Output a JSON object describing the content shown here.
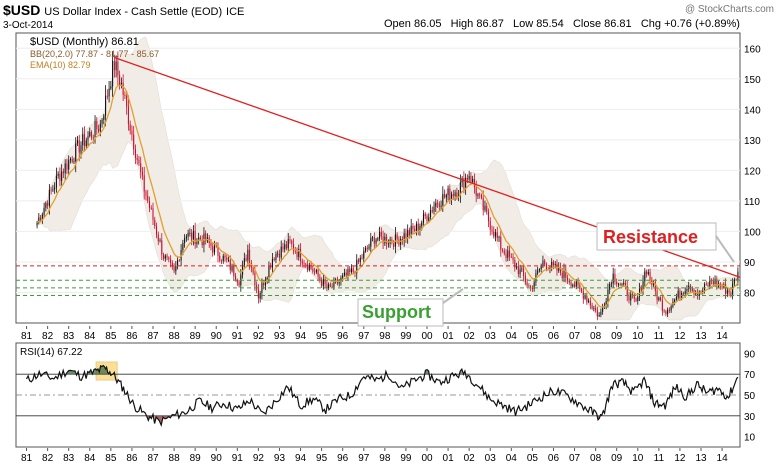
{
  "header": {
    "symbol": "$USD",
    "name": "US Dollar Index - Cash Settle (EOD)",
    "exchange": "ICE",
    "date": "3-Oct-2014",
    "watermark": "@ StockCharts.com",
    "quote": "Open 86.05   High 86.87   Low 85.54   Close 86.81   Chg +0.76 (+0.89%)"
  },
  "colors": {
    "up": "#111111",
    "down": "#c8102e",
    "bb_fill": "#f1ece6",
    "ema": "#e0a030",
    "resistance": "#e02020",
    "support": "#3aa030",
    "rsi_fill_hi": "#3e6b40",
    "rsi_fill_lo": "#8b3a3a",
    "highlight": "#f5c842"
  },
  "chart_data": [
    {
      "type": "candlestick",
      "title": "$USD (Monthly) 86.81",
      "legend": [
        {
          "label": "$USD (Monthly) 86.81"
        },
        {
          "label": "BB(20,2.0) 77.87 - 81.77 - 85.67"
        },
        {
          "label": "EMA(10) 82.79"
        }
      ],
      "y_range": [
        70,
        165
      ],
      "y_ticks": [
        80,
        90,
        100,
        110,
        120,
        130,
        140,
        150,
        160
      ],
      "x_range": [
        1980.5,
        2014.85
      ],
      "x_ticks": [
        "81",
        "82",
        "83",
        "84",
        "85",
        "86",
        "87",
        "88",
        "89",
        "90",
        "91",
        "92",
        "93",
        "94",
        "95",
        "96",
        "97",
        "98",
        "99",
        "00",
        "01",
        "02",
        "03",
        "04",
        "05",
        "06",
        "07",
        "08",
        "09",
        "10",
        "11",
        "12",
        "13",
        "14"
      ],
      "series": [
        {
          "name": "$USD (Monthly)",
          "x": [
            1981.5,
            1982.5,
            1983.5,
            1984.5,
            1985.15,
            1985.5,
            1986.5,
            1987.5,
            1988.0,
            1988.5,
            1989.5,
            1990.5,
            1991.1,
            1991.5,
            1992.0,
            1992.7,
            1993.5,
            1994.5,
            1995.3,
            1995.9,
            1996.5,
            1997.5,
            1998.5,
            1999.5,
            2000.5,
            2001.5,
            2002.0,
            2002.5,
            2003.5,
            2004.5,
            2004.9,
            2005.5,
            2006.5,
            2007.5,
            2008.2,
            2008.8,
            2009.5,
            2009.9,
            2010.4,
            2010.9,
            2011.3,
            2011.8,
            2012.4,
            2012.9,
            2013.5,
            2014.4,
            2014.75
          ],
          "close": [
            103,
            118,
            128,
            135,
            155,
            148,
            116,
            92,
            86,
            99,
            97,
            90,
            84,
            94,
            79,
            92,
            96,
            88,
            81,
            84,
            87,
            98,
            97,
            101,
            110,
            114,
            119,
            110,
            95,
            86,
            81,
            90,
            86,
            79,
            72,
            86,
            80,
            76,
            88,
            79,
            74,
            78,
            83,
            79,
            84,
            80,
            86.81
          ]
        },
        {
          "name": "BB(20,2.0)",
          "upper": 85.67,
          "middle": 81.77,
          "lower": 77.87
        },
        {
          "name": "EMA(10)",
          "value": 82.79
        }
      ],
      "annotations": [
        {
          "text": "Resistance",
          "kind": "trendline",
          "from": {
            "x": 1985.15,
            "y": 157
          },
          "to": {
            "x": 2014.85,
            "y": 85
          }
        },
        {
          "text": "Support",
          "kind": "horizontal",
          "levels": [
            79,
            81.5,
            84
          ]
        },
        {
          "text": "",
          "kind": "horizontal-resistance",
          "level": 88.7
        }
      ]
    },
    {
      "type": "line",
      "title": "RSI(14) 67.22",
      "y_range": [
        0,
        100
      ],
      "y_ticks": [
        10,
        30,
        50,
        70,
        90
      ],
      "reference_levels": [
        30,
        50,
        70
      ],
      "x_ticks": [
        "81",
        "82",
        "83",
        "84",
        "85",
        "86",
        "87",
        "88",
        "89",
        "90",
        "91",
        "92",
        "93",
        "94",
        "95",
        "96",
        "97",
        "98",
        "99",
        "00",
        "01",
        "02",
        "03",
        "04",
        "05",
        "06",
        "07",
        "08",
        "09",
        "10",
        "11",
        "12",
        "13",
        "14"
      ],
      "series": [
        {
          "name": "RSI(14)",
          "x": [
            1981.0,
            1981.6,
            1982.3,
            1983.0,
            1983.6,
            1984.2,
            1984.7,
            1985.1,
            1985.6,
            1986.1,
            1986.7,
            1987.3,
            1988.0,
            1988.6,
            1989.2,
            1989.8,
            1990.4,
            1991.0,
            1991.6,
            1992.2,
            1992.8,
            1993.4,
            1994.0,
            1994.6,
            1995.2,
            1995.8,
            1996.4,
            1997.0,
            1997.6,
            1998.2,
            1998.8,
            1999.4,
            2000.0,
            2000.6,
            2001.2,
            2001.8,
            2002.4,
            2003.0,
            2003.6,
            2004.2,
            2004.8,
            2005.4,
            2006.0,
            2006.6,
            2007.2,
            2007.8,
            2008.3,
            2008.8,
            2009.3,
            2009.8,
            2010.3,
            2010.8,
            2011.3,
            2011.8,
            2012.3,
            2012.8,
            2013.3,
            2013.8,
            2014.3,
            2014.75
          ],
          "values": [
            64,
            70,
            66,
            74,
            68,
            72,
            76,
            70,
            56,
            40,
            30,
            24,
            30,
            34,
            44,
            38,
            42,
            36,
            45,
            31,
            44,
            58,
            40,
            46,
            36,
            46,
            50,
            68,
            64,
            70,
            56,
            64,
            70,
            62,
            68,
            72,
            60,
            46,
            40,
            34,
            40,
            48,
            54,
            50,
            42,
            34,
            28,
            60,
            62,
            52,
            64,
            42,
            40,
            58,
            48,
            60,
            52,
            56,
            48,
            67.22
          ]
        }
      ],
      "annotations": [
        {
          "text": "",
          "kind": "highlight-box",
          "from": 1984.3,
          "to": 1985.3
        }
      ]
    }
  ]
}
